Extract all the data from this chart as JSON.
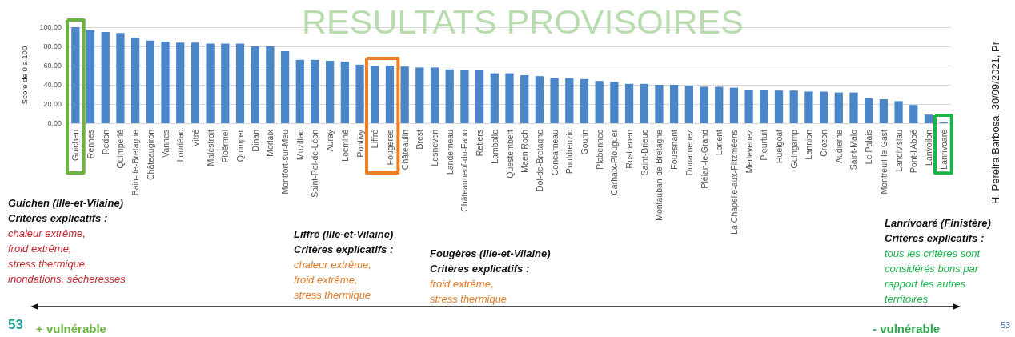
{
  "chart_data": {
    "type": "bar",
    "title": "RESULTATS PROVISOIRES",
    "ylabel": "Score de 0 à 100",
    "categories": [
      "Guichen",
      "Rennes",
      "Redon",
      "Quimperlé",
      "Bain-de-Bretagne",
      "Châteaugiron",
      "Vannes",
      "Loudéac",
      "Vitré",
      "Malestroit",
      "Ploërmel",
      "Quimper",
      "Dinan",
      "Morlaix",
      "Montfort-sur-Meu",
      "Muzillac",
      "Saint-Pol-de-Léon",
      "Auray",
      "Locminé",
      "Pontivy",
      "Liffré",
      "Fougères",
      "Châteaulin",
      "Brest",
      "Lesneven",
      "Landerneau",
      "Châteauneuf-du-Faou",
      "Retiers",
      "Lamballe",
      "Questembert",
      "Maen Roch",
      "Dol-de-Bretagne",
      "Concarneau",
      "Pouldreuzic",
      "Gourin",
      "Plabennec",
      "Carhaix-Plouguer",
      "Rostrenen",
      "Saint-Brieuc",
      "Montauban-de-Bretagne",
      "Fouesnant",
      "Douarnenez",
      "Plélan-le-Grand",
      "Lorient",
      "La Chapelle-aux-Filtzméens",
      "Merlevenez",
      "Pleurtuit",
      "Huelgoat",
      "Guingamp",
      "Lannion",
      "Crozon",
      "Audierne",
      "Saint-Malo",
      "Le Palais",
      "Montreuil-le-Gast",
      "Landivisiau",
      "Pont-l'Abbé",
      "Lanvollon",
      "Lanrivoaré"
    ],
    "values": [
      100,
      97,
      95,
      94,
      89,
      86,
      85,
      84,
      84,
      83,
      83,
      83,
      80,
      80,
      75,
      66,
      66,
      65,
      64,
      61,
      60,
      60,
      59,
      58,
      58,
      56,
      55,
      55,
      52,
      52,
      50,
      49,
      47,
      47,
      46,
      44,
      43,
      41,
      41,
      40,
      40,
      39,
      38,
      38,
      37,
      35,
      35,
      34,
      34,
      33,
      33,
      32,
      32,
      26,
      25,
      23,
      19,
      9,
      1
    ],
    "color": "#4a86c8",
    "ylim": [
      0,
      100
    ],
    "yticks": [
      {
        "value": 0,
        "label": "0.00"
      },
      {
        "value": 20,
        "label": "20.00"
      },
      {
        "value": 40,
        "label": "40.00"
      },
      {
        "value": 60,
        "label": "60.00"
      },
      {
        "value": 80,
        "label": "80.00"
      },
      {
        "value": 100,
        "label": "100.00"
      }
    ],
    "grid": "y",
    "annotations": [
      "Guichen (Ille-et-Vilaine)\nCritères explicatifs  :\nchaleur extrême,\nfroid extrême,\nstress thermique,\ninondations, sécheresses",
      "Liffré (Ille-et-Vilaine)\nCritères explicatifs  :\nchaleur extrême,\nfroid extrême,\nstress thermique",
      "Fougères (Ille-et-Vilaine)\nCritères explicatifs  :\nfroid extrême,\nstress thermique",
      "Lanrivoaré (Finistère)\nCritères explicatifs  :\ntous les critères sont\nconsidérés bons par\nrapport les autres\nterritoires",
      "53",
      "+ vulnérable",
      "- vulnérable",
      "53",
      "H. Pereira Barbosa, 30/09/2021, Pr"
    ]
  }
}
